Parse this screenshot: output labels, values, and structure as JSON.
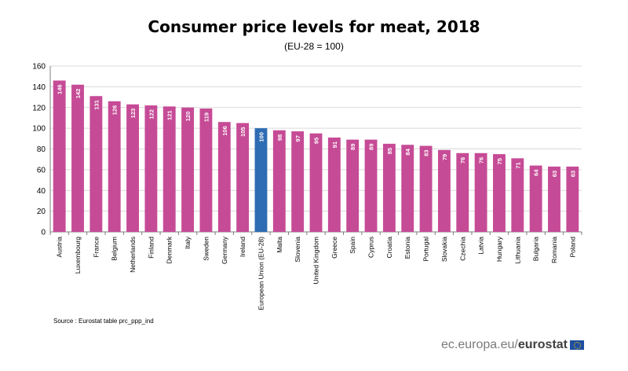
{
  "header": {
    "title": "Consumer price levels for meat, 2018",
    "subtitle": "(EU-28 = 100)"
  },
  "source_note": "Source : Eurostat table prc_ppp_ind",
  "footer": {
    "domain": "ec.europa.eu",
    "separator": "/",
    "brand": "eurostat"
  },
  "colors": {
    "bar": "#c64b96",
    "highlight": "#2e6cb3",
    "grid": "#d9d9d9",
    "axis": "#7f7f7f"
  },
  "chart_data": {
    "type": "bar",
    "title": "Consumer price levels for meat, 2018",
    "subtitle": "(EU-28 = 100)",
    "categories": [
      "Austria",
      "Luxembourg",
      "France",
      "Belgium",
      "Netherlands",
      "Finland",
      "Denmark",
      "Italy",
      "Sweden",
      "Germany",
      "Ireland",
      "European Union (EU-28)",
      "Malta",
      "Slovenia",
      "United Kingdom",
      "Greece",
      "Spain",
      "Cyprus",
      "Croatia",
      "Estonia",
      "Portugal",
      "Slovakia",
      "Czechia",
      "Latvia",
      "Hungary",
      "Lithuania",
      "Bulgaria",
      "Romania",
      "Poland"
    ],
    "values": [
      146,
      142,
      131,
      126,
      123,
      122,
      121,
      120,
      119,
      106,
      105,
      100,
      98,
      97,
      95,
      91,
      89,
      89,
      85,
      84,
      83,
      79,
      76,
      76,
      75,
      71,
      64,
      63,
      63
    ],
    "highlight": "European Union (EU-28)",
    "ylim": [
      0,
      160
    ],
    "yticks": [
      0,
      20,
      40,
      60,
      80,
      100,
      120,
      140,
      160
    ],
    "grid": true,
    "data_labels": true
  }
}
